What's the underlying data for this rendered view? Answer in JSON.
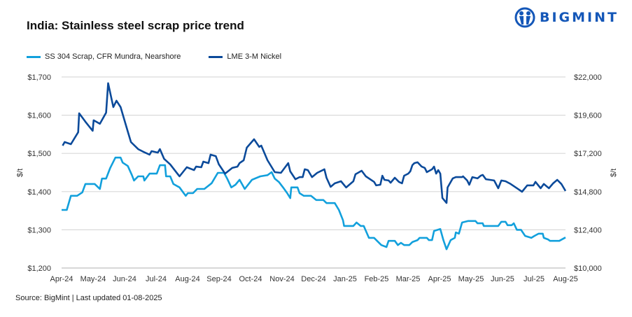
{
  "title": "India: Stainless steel scrap price trend",
  "logo": {
    "text": "BIGMINT",
    "color": "#1457b8"
  },
  "source": "Source: BigMint | Last updated 01-08-2025",
  "chart_data": {
    "type": "line",
    "title": "India: Stainless steel scrap price trend",
    "legend_placement": "top-left",
    "grid": true,
    "xlim": [
      "2024-04-01",
      "2025-08-01"
    ],
    "x_ticks": [
      "Apr-24",
      "May-24",
      "Jun-24",
      "Jul-24",
      "Aug-24",
      "Sep-24",
      "Oct-24",
      "Nov-24",
      "Dec-24",
      "Jan-25",
      "Feb-25",
      "Mar-25",
      "Apr-25",
      "May-25",
      "Jun-25",
      "Jul-25",
      "Aug-25"
    ],
    "y_left": {
      "label": "$/t",
      "ylim": [
        1200,
        1700
      ],
      "ticks": [
        "$1,200",
        "$1,300",
        "$1,400",
        "$1,500",
        "$1,600",
        "$1,700"
      ]
    },
    "y_right": {
      "label": "$/t",
      "ylim": [
        10000,
        22000
      ],
      "ticks": [
        "$10,000",
        "$12,400",
        "$14,800",
        "$17,200",
        "$19,600",
        "$22,000"
      ]
    },
    "series": [
      {
        "name": "SS 304 Scrap, CFR Mundra, Nearshore",
        "axis": "left",
        "color": "#12a0dc",
        "points": [
          [
            "2024-04-01",
            1352
          ],
          [
            "2024-04-06",
            1352
          ],
          [
            "2024-04-10",
            1389
          ],
          [
            "2024-04-16",
            1389
          ],
          [
            "2024-04-21",
            1398
          ],
          [
            "2024-04-24",
            1420
          ],
          [
            "2024-05-03",
            1420
          ],
          [
            "2024-05-08",
            1407
          ],
          [
            "2024-05-10",
            1434
          ],
          [
            "2024-05-14",
            1434
          ],
          [
            "2024-05-18",
            1462
          ],
          [
            "2024-05-23",
            1489
          ],
          [
            "2024-05-28",
            1489
          ],
          [
            "2024-05-30",
            1476
          ],
          [
            "2024-06-04",
            1467
          ],
          [
            "2024-06-08",
            1443
          ],
          [
            "2024-06-10",
            1429
          ],
          [
            "2024-06-14",
            1440
          ],
          [
            "2024-06-19",
            1440
          ],
          [
            "2024-06-20",
            1429
          ],
          [
            "2024-06-25",
            1447
          ],
          [
            "2024-07-02",
            1447
          ],
          [
            "2024-07-05",
            1469
          ],
          [
            "2024-07-10",
            1469
          ],
          [
            "2024-07-11",
            1440
          ],
          [
            "2024-07-15",
            1440
          ],
          [
            "2024-07-18",
            1420
          ],
          [
            "2024-07-24",
            1411
          ],
          [
            "2024-07-28",
            1396
          ],
          [
            "2024-07-30",
            1389
          ],
          [
            "2024-08-01",
            1396
          ],
          [
            "2024-08-06",
            1396
          ],
          [
            "2024-08-10",
            1407
          ],
          [
            "2024-08-17",
            1407
          ],
          [
            "2024-08-24",
            1422
          ],
          [
            "2024-08-30",
            1449
          ],
          [
            "2024-09-05",
            1449
          ],
          [
            "2024-09-08",
            1434
          ],
          [
            "2024-09-12",
            1411
          ],
          [
            "2024-09-16",
            1418
          ],
          [
            "2024-09-20",
            1431
          ],
          [
            "2024-09-25",
            1407
          ],
          [
            "2024-10-02",
            1431
          ],
          [
            "2024-10-10",
            1440
          ],
          [
            "2024-10-17",
            1443
          ],
          [
            "2024-10-21",
            1451
          ],
          [
            "2024-10-24",
            1434
          ],
          [
            "2024-10-28",
            1425
          ],
          [
            "2024-11-01",
            1411
          ],
          [
            "2024-11-05",
            1396
          ],
          [
            "2024-11-08",
            1383
          ],
          [
            "2024-11-09",
            1411
          ],
          [
            "2024-11-15",
            1411
          ],
          [
            "2024-11-17",
            1396
          ],
          [
            "2024-11-21",
            1389
          ],
          [
            "2024-11-28",
            1389
          ],
          [
            "2024-12-03",
            1378
          ],
          [
            "2024-12-10",
            1378
          ],
          [
            "2024-12-13",
            1370
          ],
          [
            "2024-12-21",
            1370
          ],
          [
            "2024-12-25",
            1352
          ],
          [
            "2024-12-29",
            1325
          ],
          [
            "2024-12-30",
            1310
          ],
          [
            "2025-01-08",
            1310
          ],
          [
            "2025-01-11",
            1319
          ],
          [
            "2025-01-15",
            1310
          ],
          [
            "2025-01-18",
            1310
          ],
          [
            "2025-01-23",
            1279
          ],
          [
            "2025-01-28",
            1279
          ],
          [
            "2025-02-04",
            1260
          ],
          [
            "2025-02-09",
            1255
          ],
          [
            "2025-02-11",
            1271
          ],
          [
            "2025-02-17",
            1271
          ],
          [
            "2025-02-20",
            1260
          ],
          [
            "2025-02-23",
            1266
          ],
          [
            "2025-02-26",
            1260
          ],
          [
            "2025-03-03",
            1260
          ],
          [
            "2025-03-06",
            1268
          ],
          [
            "2025-03-11",
            1273
          ],
          [
            "2025-03-13",
            1279
          ],
          [
            "2025-03-20",
            1279
          ],
          [
            "2025-03-22",
            1273
          ],
          [
            "2025-03-25",
            1273
          ],
          [
            "2025-03-27",
            1297
          ],
          [
            "2025-04-02",
            1302
          ],
          [
            "2025-04-05",
            1273
          ],
          [
            "2025-04-08",
            1249
          ],
          [
            "2025-04-12",
            1273
          ],
          [
            "2025-04-16",
            1279
          ],
          [
            "2025-04-17",
            1293
          ],
          [
            "2025-04-20",
            1290
          ],
          [
            "2025-04-23",
            1319
          ],
          [
            "2025-04-29",
            1323
          ],
          [
            "2025-05-06",
            1323
          ],
          [
            "2025-05-08",
            1317
          ],
          [
            "2025-05-13",
            1317
          ],
          [
            "2025-05-14",
            1310
          ],
          [
            "2025-05-28",
            1310
          ],
          [
            "2025-05-31",
            1321
          ],
          [
            "2025-06-04",
            1321
          ],
          [
            "2025-06-06",
            1312
          ],
          [
            "2025-06-10",
            1312
          ],
          [
            "2025-06-12",
            1317
          ],
          [
            "2025-06-15",
            1300
          ],
          [
            "2025-06-19",
            1300
          ],
          [
            "2025-06-23",
            1284
          ],
          [
            "2025-06-29",
            1279
          ],
          [
            "2025-07-02",
            1284
          ],
          [
            "2025-07-06",
            1290
          ],
          [
            "2025-07-10",
            1290
          ],
          [
            "2025-07-11",
            1279
          ],
          [
            "2025-07-15",
            1275
          ],
          [
            "2025-07-17",
            1271
          ],
          [
            "2025-07-26",
            1271
          ],
          [
            "2025-08-01",
            1280
          ]
        ]
      },
      {
        "name": "LME 3-M Nickel",
        "axis": "right",
        "color": "#0b4a9a",
        "points": [
          [
            "2024-04-02",
            17690
          ],
          [
            "2024-04-04",
            17910
          ],
          [
            "2024-04-10",
            17780
          ],
          [
            "2024-04-17",
            18530
          ],
          [
            "2024-04-18",
            19720
          ],
          [
            "2024-04-24",
            19190
          ],
          [
            "2024-05-01",
            18620
          ],
          [
            "2024-05-02",
            19280
          ],
          [
            "2024-05-08",
            19060
          ],
          [
            "2024-05-14",
            19760
          ],
          [
            "2024-05-16",
            21610
          ],
          [
            "2024-05-21",
            20110
          ],
          [
            "2024-05-24",
            20510
          ],
          [
            "2024-05-28",
            20110
          ],
          [
            "2024-05-31",
            19450
          ],
          [
            "2024-06-04",
            18570
          ],
          [
            "2024-06-07",
            17910
          ],
          [
            "2024-06-14",
            17470
          ],
          [
            "2024-06-19",
            17300
          ],
          [
            "2024-06-25",
            17120
          ],
          [
            "2024-06-27",
            17340
          ],
          [
            "2024-07-03",
            17250
          ],
          [
            "2024-07-05",
            17470
          ],
          [
            "2024-07-09",
            16860
          ],
          [
            "2024-07-15",
            16510
          ],
          [
            "2024-07-24",
            15760
          ],
          [
            "2024-07-31",
            16330
          ],
          [
            "2024-08-07",
            16150
          ],
          [
            "2024-08-09",
            16370
          ],
          [
            "2024-08-14",
            16330
          ],
          [
            "2024-08-16",
            16680
          ],
          [
            "2024-08-21",
            16590
          ],
          [
            "2024-08-23",
            17120
          ],
          [
            "2024-08-28",
            17030
          ],
          [
            "2024-08-31",
            16510
          ],
          [
            "2024-09-06",
            15930
          ],
          [
            "2024-09-13",
            16290
          ],
          [
            "2024-09-18",
            16370
          ],
          [
            "2024-09-20",
            16590
          ],
          [
            "2024-09-24",
            16770
          ],
          [
            "2024-09-27",
            17560
          ],
          [
            "2024-10-04",
            18090
          ],
          [
            "2024-10-09",
            17610
          ],
          [
            "2024-10-11",
            17690
          ],
          [
            "2024-10-17",
            16770
          ],
          [
            "2024-10-24",
            16020
          ],
          [
            "2024-10-30",
            15980
          ],
          [
            "2024-11-06",
            16590
          ],
          [
            "2024-11-08",
            16070
          ],
          [
            "2024-11-13",
            15580
          ],
          [
            "2024-11-17",
            15710
          ],
          [
            "2024-11-20",
            15710
          ],
          [
            "2024-11-22",
            16200
          ],
          [
            "2024-11-25",
            16150
          ],
          [
            "2024-11-29",
            15710
          ],
          [
            "2024-12-04",
            15980
          ],
          [
            "2024-12-11",
            16200
          ],
          [
            "2024-12-13",
            15670
          ],
          [
            "2024-12-17",
            15100
          ],
          [
            "2024-12-21",
            15320
          ],
          [
            "2024-12-27",
            15450
          ],
          [
            "2025-01-01",
            15060
          ],
          [
            "2025-01-08",
            15450
          ],
          [
            "2025-01-10",
            15890
          ],
          [
            "2025-01-16",
            16110
          ],
          [
            "2025-01-20",
            15760
          ],
          [
            "2025-01-28",
            15410
          ],
          [
            "2025-01-30",
            15190
          ],
          [
            "2025-02-03",
            15230
          ],
          [
            "2025-02-05",
            15800
          ],
          [
            "2025-02-07",
            15540
          ],
          [
            "2025-02-11",
            15500
          ],
          [
            "2025-02-13",
            15360
          ],
          [
            "2025-02-17",
            15670
          ],
          [
            "2025-02-21",
            15410
          ],
          [
            "2025-02-24",
            15320
          ],
          [
            "2025-02-26",
            15800
          ],
          [
            "2025-03-02",
            15930
          ],
          [
            "2025-03-04",
            16070
          ],
          [
            "2025-03-06",
            16460
          ],
          [
            "2025-03-08",
            16590
          ],
          [
            "2025-03-11",
            16640
          ],
          [
            "2025-03-15",
            16370
          ],
          [
            "2025-03-18",
            16290
          ],
          [
            "2025-03-20",
            16020
          ],
          [
            "2025-03-25",
            16200
          ],
          [
            "2025-03-27",
            16370
          ],
          [
            "2025-03-29",
            15930
          ],
          [
            "2025-03-31",
            16150
          ],
          [
            "2025-04-02",
            15930
          ],
          [
            "2025-04-04",
            14400
          ],
          [
            "2025-04-08",
            14090
          ],
          [
            "2025-04-09",
            15060
          ],
          [
            "2025-04-14",
            15630
          ],
          [
            "2025-04-17",
            15710
          ],
          [
            "2025-04-23",
            15710
          ],
          [
            "2025-04-24",
            15760
          ],
          [
            "2025-04-28",
            15500
          ],
          [
            "2025-04-30",
            15230
          ],
          [
            "2025-05-03",
            15710
          ],
          [
            "2025-05-08",
            15630
          ],
          [
            "2025-05-11",
            15800
          ],
          [
            "2025-05-13",
            15850
          ],
          [
            "2025-05-16",
            15580
          ],
          [
            "2025-05-24",
            15500
          ],
          [
            "2025-05-28",
            15010
          ],
          [
            "2025-05-31",
            15500
          ],
          [
            "2025-06-04",
            15450
          ],
          [
            "2025-06-09",
            15280
          ],
          [
            "2025-06-16",
            14970
          ],
          [
            "2025-06-20",
            14790
          ],
          [
            "2025-06-25",
            15190
          ],
          [
            "2025-07-01",
            15190
          ],
          [
            "2025-07-03",
            15410
          ],
          [
            "2025-07-08",
            15010
          ],
          [
            "2025-07-11",
            15280
          ],
          [
            "2025-07-16",
            15010
          ],
          [
            "2025-07-20",
            15320
          ],
          [
            "2025-07-24",
            15540
          ],
          [
            "2025-07-28",
            15280
          ],
          [
            "2025-08-01",
            14840
          ]
        ]
      }
    ]
  }
}
